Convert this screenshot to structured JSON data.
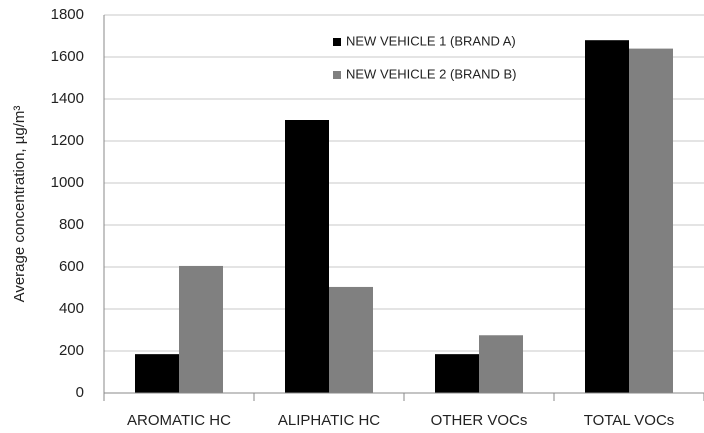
{
  "chart_data": {
    "type": "bar",
    "y_label": "Average concentration, µg/m³",
    "categories": [
      "AROMATIC HC",
      "ALIPHATIC HC",
      "OTHER VOCs",
      "TOTAL VOCs"
    ],
    "series": [
      {
        "name": "NEW VEHICLE 1 (BRAND A)",
        "color": "#000000",
        "values": [
          185,
          1300,
          185,
          1680
        ]
      },
      {
        "name": "NEW VEHICLE 2 (BRAND B)",
        "color": "#808080",
        "values": [
          605,
          505,
          275,
          1640
        ]
      }
    ],
    "ylim": [
      0,
      1800
    ],
    "yticks": [
      0,
      200,
      400,
      600,
      800,
      1000,
      1200,
      1400,
      1600,
      1800
    ],
    "grid": true,
    "legend": "top"
  }
}
